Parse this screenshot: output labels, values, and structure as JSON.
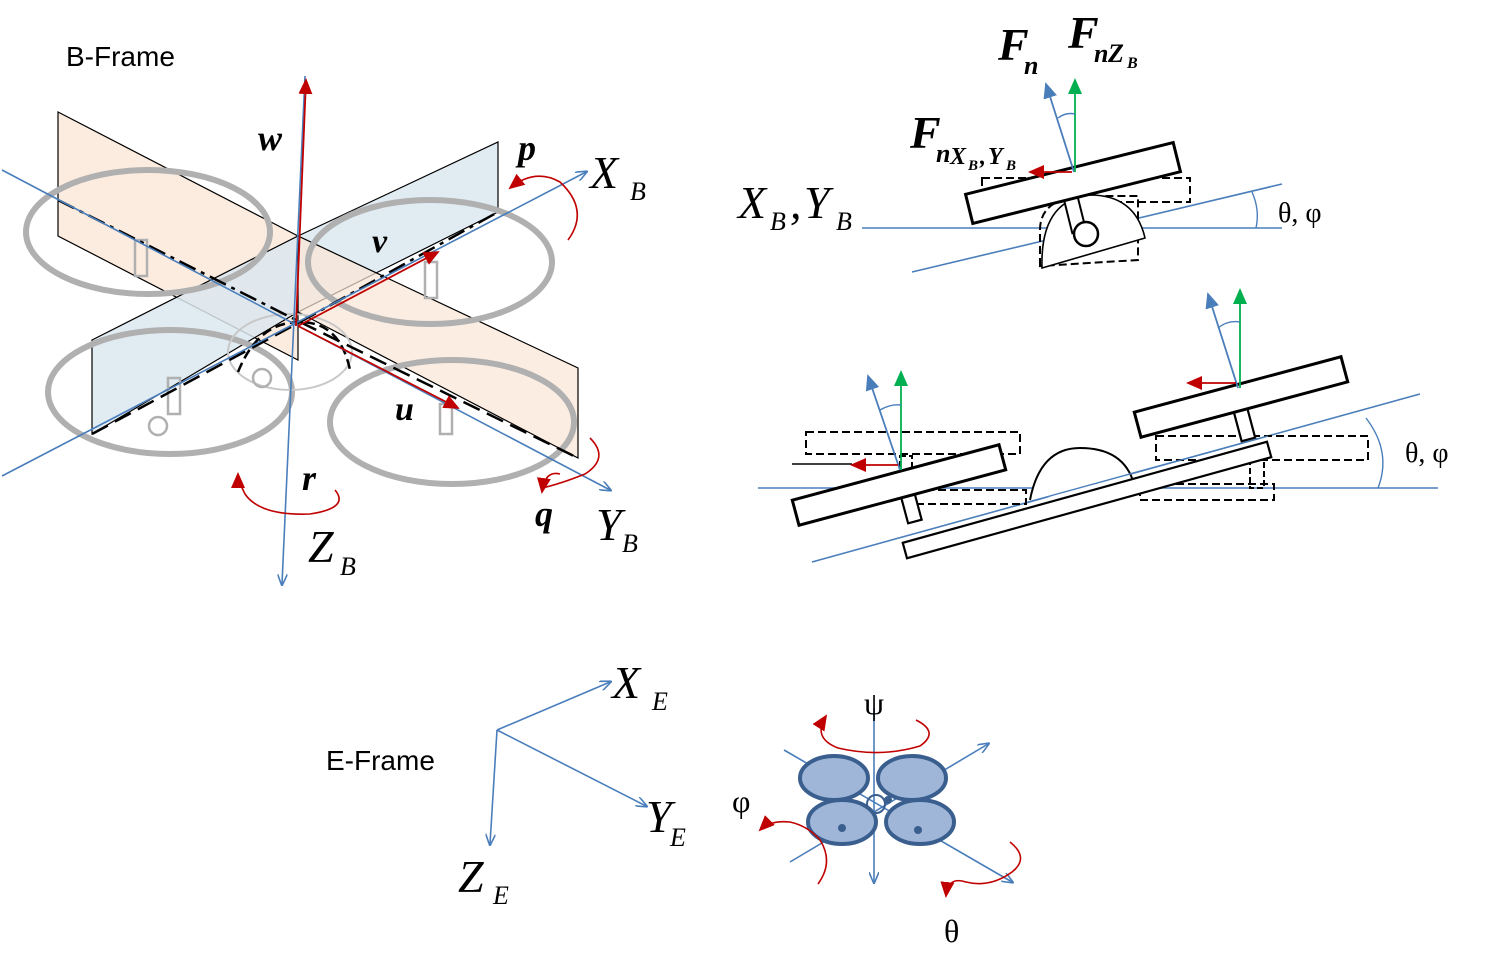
{
  "colors": {
    "axis_blue": "#4a7ebb",
    "vector_red": "#c00000",
    "vector_green": "#00b050",
    "plane_orange": "#fbe5d6",
    "plane_blue": "#dae7f0",
    "propeller_fill": "#9fb6d8",
    "propeller_stroke": "#3a5f8f",
    "frame_gray": "#b0b0b0"
  },
  "b_frame": {
    "title": "B-Frame",
    "x_axis": {
      "main": "X",
      "sub": "B"
    },
    "y_axis": {
      "main": "Y",
      "sub": "B"
    },
    "z_axis": {
      "main": "Z",
      "sub": "B"
    },
    "w": "w",
    "v": "v",
    "u": "u",
    "p": "p",
    "q": "q",
    "r": "r"
  },
  "force_top": {
    "fn": {
      "main": "F",
      "sub": "n"
    },
    "fnz": {
      "main": "F",
      "sub": "n",
      "subsub": "Z",
      "subsubsub": "B"
    },
    "fnxy": {
      "main": "F",
      "sub": "n",
      "subsub1": "X",
      "subsubsub1": "B",
      "comma": ",",
      "subsub2": "Y",
      "subsubsub2": "B"
    },
    "xbyb": {
      "x": "X",
      "xs": "B",
      "comma": ",",
      "y": "Y",
      "ys": "B"
    },
    "angle": "θ, φ"
  },
  "tilt_middle": {
    "angle": "θ, φ"
  },
  "e_frame": {
    "title": "E-Frame",
    "x_axis": {
      "main": "X",
      "sub": "E"
    },
    "y_axis": {
      "main": "Y",
      "sub": "E"
    },
    "z_axis": {
      "main": "Z",
      "sub": "E"
    }
  },
  "rotations": {
    "psi": "ψ",
    "phi": "φ",
    "theta": "θ"
  }
}
